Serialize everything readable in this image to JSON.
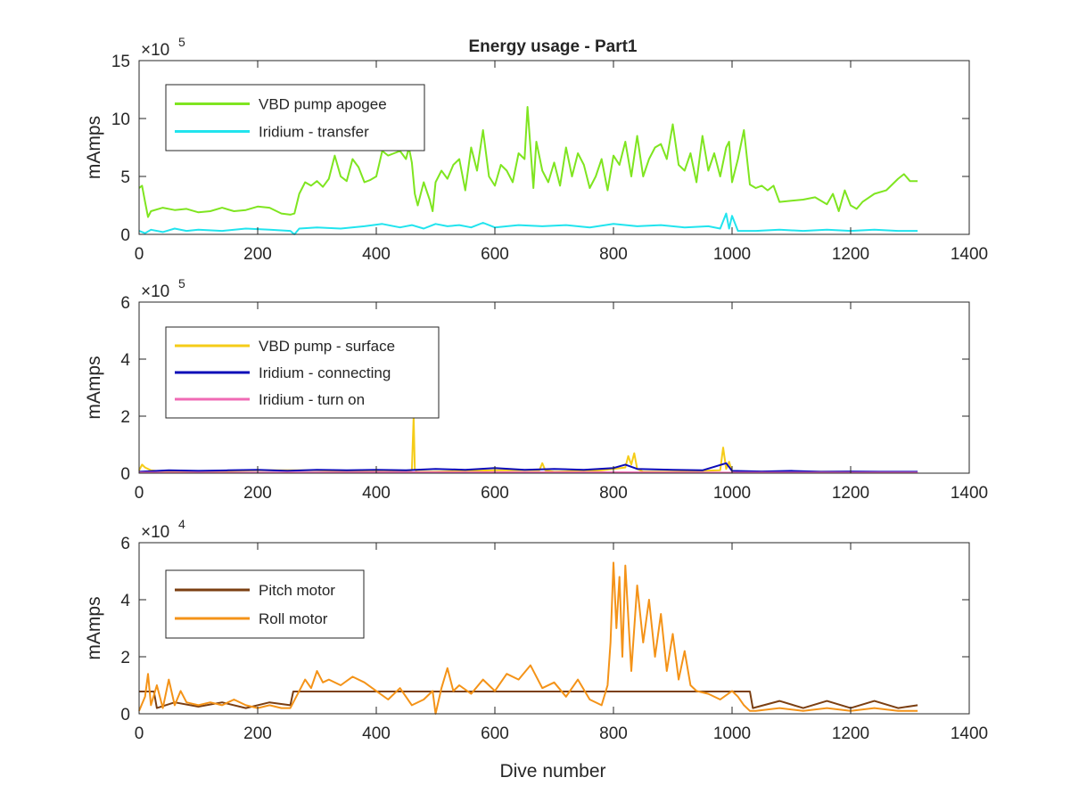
{
  "figure": {
    "title": "Energy usage - Part1",
    "xlabel": "Dive number"
  },
  "colors": {
    "vbd_apogee": "#7fe520",
    "iridium_transfer": "#21e4ee",
    "vbd_surface": "#f5cc18",
    "iridium_connecting": "#0b0bb8",
    "iridium_turn_on": "#f06ab4",
    "pitch_motor": "#7b3f12",
    "roll_motor": "#f49318"
  },
  "chart_data": [
    {
      "type": "line",
      "title": "Energy usage - Part1",
      "xlabel": "",
      "ylabel": "mAmps",
      "exponent_label": "×10",
      "exponent_power": "5",
      "xlim": [
        0,
        1400
      ],
      "ylim": [
        0,
        15
      ],
      "scale_factor": 100000,
      "xticks": [
        "0",
        "200",
        "400",
        "600",
        "800",
        "1000",
        "1200",
        "1400"
      ],
      "yticks": [
        "0",
        "5",
        "10",
        "15"
      ],
      "legend_position": "top-left",
      "series": [
        {
          "name": "VBD pump apogee",
          "color": "#7fe520",
          "x": [
            0,
            5,
            10,
            15,
            20,
            40,
            60,
            80,
            100,
            120,
            140,
            160,
            180,
            200,
            220,
            240,
            255,
            262,
            270,
            280,
            290,
            300,
            310,
            320,
            330,
            340,
            350,
            360,
            370,
            380,
            390,
            400,
            410,
            420,
            430,
            440,
            450,
            455,
            460,
            465,
            470,
            480,
            490,
            495,
            500,
            510,
            520,
            530,
            540,
            550,
            560,
            570,
            580,
            590,
            600,
            610,
            620,
            630,
            640,
            650,
            655,
            660,
            665,
            670,
            680,
            690,
            700,
            710,
            720,
            730,
            740,
            750,
            760,
            770,
            780,
            790,
            800,
            810,
            820,
            830,
            840,
            850,
            860,
            870,
            880,
            890,
            900,
            910,
            920,
            930,
            940,
            950,
            960,
            970,
            980,
            990,
            995,
            1000,
            1010,
            1020,
            1030,
            1040,
            1050,
            1060,
            1070,
            1080,
            1100,
            1120,
            1140,
            1160,
            1170,
            1180,
            1190,
            1200,
            1210,
            1220,
            1240,
            1260,
            1280,
            1290,
            1300,
            1313
          ],
          "y": [
            4.0,
            4.2,
            2.8,
            1.5,
            2.0,
            2.3,
            2.1,
            2.2,
            1.9,
            2.0,
            2.3,
            2.0,
            2.1,
            2.4,
            2.3,
            1.8,
            1.7,
            1.8,
            3.5,
            4.5,
            4.2,
            4.6,
            4.1,
            4.8,
            6.8,
            5.0,
            4.6,
            6.5,
            5.8,
            4.5,
            4.7,
            5.0,
            7.2,
            6.8,
            7.0,
            7.2,
            6.5,
            7.5,
            6.2,
            3.5,
            2.5,
            4.5,
            3.0,
            2.0,
            4.5,
            5.5,
            4.8,
            6.0,
            6.5,
            3.8,
            7.5,
            5.5,
            9.0,
            5.0,
            4.2,
            6.0,
            5.5,
            4.5,
            7.0,
            6.5,
            11.0,
            7.5,
            4.0,
            8.0,
            5.5,
            4.5,
            6.2,
            4.2,
            7.5,
            5.0,
            7.0,
            6.0,
            4.0,
            5.0,
            6.5,
            3.8,
            6.8,
            6.0,
            8.0,
            5.0,
            8.5,
            5.0,
            6.5,
            7.5,
            7.8,
            6.5,
            9.5,
            6.0,
            5.5,
            7.0,
            4.5,
            8.5,
            5.5,
            7.0,
            5.0,
            7.5,
            8.0,
            4.5,
            6.5,
            9.0,
            4.3,
            4.0,
            4.2,
            3.8,
            4.2,
            2.8,
            2.9,
            3.0,
            3.2,
            2.6,
            3.5,
            2.0,
            3.8,
            2.5,
            2.2,
            2.8,
            3.5,
            3.8,
            4.8,
            5.2,
            4.6,
            4.6
          ]
        },
        {
          "name": "Iridium - transfer",
          "color": "#21e4ee",
          "x": [
            0,
            10,
            20,
            40,
            60,
            80,
            100,
            140,
            180,
            220,
            255,
            262,
            270,
            300,
            340,
            380,
            410,
            440,
            460,
            480,
            500,
            520,
            540,
            560,
            580,
            600,
            640,
            680,
            720,
            760,
            800,
            840,
            880,
            920,
            960,
            980,
            990,
            995,
            1000,
            1010,
            1040,
            1080,
            1120,
            1160,
            1200,
            1240,
            1280,
            1313
          ],
          "y": [
            0.3,
            0.1,
            0.4,
            0.2,
            0.5,
            0.3,
            0.4,
            0.3,
            0.5,
            0.4,
            0.3,
            0.0,
            0.5,
            0.6,
            0.5,
            0.7,
            0.9,
            0.6,
            0.8,
            0.5,
            0.9,
            0.7,
            0.8,
            0.6,
            1.0,
            0.6,
            0.8,
            0.7,
            0.8,
            0.6,
            0.9,
            0.7,
            0.8,
            0.6,
            0.7,
            0.5,
            1.8,
            0.5,
            1.6,
            0.3,
            0.3,
            0.4,
            0.3,
            0.4,
            0.3,
            0.4,
            0.3,
            0.3
          ]
        }
      ]
    },
    {
      "type": "line",
      "title": "",
      "xlabel": "",
      "ylabel": "mAmps",
      "exponent_label": "×10",
      "exponent_power": "5",
      "xlim": [
        0,
        1400
      ],
      "ylim": [
        0,
        6
      ],
      "scale_factor": 100000,
      "xticks": [
        "0",
        "200",
        "400",
        "600",
        "800",
        "1000",
        "1200",
        "1400"
      ],
      "yticks": [
        "0",
        "2",
        "4",
        "6"
      ],
      "legend_position": "top-left",
      "series": [
        {
          "name": "VBD pump - surface",
          "color": "#f5cc18",
          "x": [
            0,
            5,
            10,
            20,
            40,
            100,
            200,
            300,
            400,
            440,
            460,
            463,
            465,
            468,
            470,
            500,
            600,
            675,
            680,
            685,
            700,
            780,
            820,
            825,
            830,
            835,
            840,
            850,
            900,
            980,
            985,
            990,
            995,
            1000,
            1100,
            1200,
            1250,
            1313
          ],
          "y": [
            0.1,
            0.3,
            0.2,
            0.1,
            0.05,
            0.05,
            0.1,
            0.1,
            0.05,
            0.05,
            0.1,
            2.0,
            0.15,
            0.05,
            0.05,
            0.05,
            0.1,
            0.1,
            0.35,
            0.1,
            0.05,
            0.1,
            0.2,
            0.6,
            0.3,
            0.7,
            0.15,
            0.05,
            0.05,
            0.1,
            0.9,
            0.15,
            0.4,
            0.05,
            0.05,
            0.05,
            0.02,
            0.02
          ]
        },
        {
          "name": "Iridium - connecting",
          "color": "#0b0bb8",
          "x": [
            0,
            50,
            100,
            150,
            200,
            250,
            300,
            350,
            400,
            450,
            500,
            550,
            600,
            650,
            700,
            750,
            800,
            820,
            840,
            900,
            950,
            990,
            1000,
            1050,
            1100,
            1150,
            1200,
            1250,
            1313
          ],
          "y": [
            0.05,
            0.1,
            0.08,
            0.1,
            0.12,
            0.08,
            0.12,
            0.1,
            0.12,
            0.1,
            0.15,
            0.12,
            0.18,
            0.12,
            0.15,
            0.12,
            0.18,
            0.3,
            0.15,
            0.12,
            0.1,
            0.35,
            0.08,
            0.06,
            0.08,
            0.05,
            0.06,
            0.05,
            0.05
          ]
        },
        {
          "name": "Iridium - turn on",
          "color": "#f06ab4",
          "x": [
            0,
            200,
            400,
            600,
            800,
            1000,
            1200,
            1313
          ],
          "y": [
            0.02,
            0.02,
            0.03,
            0.03,
            0.03,
            0.02,
            0.02,
            0.02
          ]
        }
      ]
    },
    {
      "type": "line",
      "title": "",
      "xlabel": "Dive number",
      "ylabel": "mAmps",
      "exponent_label": "×10",
      "exponent_power": "4",
      "xlim": [
        0,
        1400
      ],
      "ylim": [
        0,
        6
      ],
      "scale_factor": 10000,
      "xticks": [
        "0",
        "200",
        "400",
        "600",
        "800",
        "1000",
        "1200",
        "1400"
      ],
      "yticks": [
        "0",
        "2",
        "4",
        "6"
      ],
      "legend_position": "top-left",
      "series": [
        {
          "name": "Pitch motor",
          "color": "#7b3f12",
          "x": [
            0,
            25,
            30,
            60,
            100,
            140,
            180,
            220,
            255,
            260,
            400,
            600,
            800,
            1000,
            1030,
            1035,
            1080,
            1120,
            1160,
            1200,
            1240,
            1280,
            1313
          ],
          "y": [
            0.78,
            0.78,
            0.2,
            0.4,
            0.25,
            0.4,
            0.2,
            0.4,
            0.3,
            0.78,
            0.78,
            0.78,
            0.78,
            0.78,
            0.78,
            0.2,
            0.45,
            0.2,
            0.45,
            0.2,
            0.45,
            0.2,
            0.3
          ]
        },
        {
          "name": "Roll motor",
          "color": "#f49318",
          "x": [
            0,
            10,
            15,
            20,
            30,
            40,
            50,
            60,
            70,
            80,
            100,
            120,
            140,
            160,
            180,
            200,
            220,
            240,
            255,
            270,
            280,
            290,
            300,
            310,
            320,
            340,
            360,
            380,
            400,
            420,
            440,
            460,
            480,
            495,
            500,
            510,
            520,
            530,
            540,
            560,
            580,
            600,
            620,
            640,
            660,
            680,
            700,
            720,
            740,
            760,
            780,
            790,
            795,
            800,
            805,
            810,
            815,
            820,
            830,
            840,
            850,
            860,
            870,
            880,
            890,
            900,
            910,
            920,
            930,
            940,
            960,
            980,
            1000,
            1010,
            1020,
            1030,
            1040,
            1080,
            1120,
            1160,
            1200,
            1240,
            1280,
            1313
          ],
          "y": [
            0.1,
            0.6,
            1.4,
            0.3,
            1.0,
            0.2,
            1.2,
            0.3,
            0.8,
            0.4,
            0.3,
            0.4,
            0.3,
            0.5,
            0.3,
            0.2,
            0.3,
            0.2,
            0.2,
            0.8,
            1.2,
            0.9,
            1.5,
            1.1,
            1.2,
            1.0,
            1.3,
            1.1,
            0.8,
            0.5,
            0.9,
            0.3,
            0.5,
            0.8,
            0.0,
            0.9,
            1.6,
            0.8,
            1.0,
            0.7,
            1.2,
            0.8,
            1.4,
            1.2,
            1.7,
            0.9,
            1.1,
            0.6,
            1.2,
            0.5,
            0.3,
            1.0,
            2.5,
            5.3,
            3.0,
            4.8,
            2.0,
            5.2,
            1.5,
            4.5,
            2.5,
            4.0,
            2.0,
            3.5,
            1.5,
            2.8,
            1.2,
            2.2,
            1.0,
            0.8,
            0.7,
            0.5,
            0.8,
            0.6,
            0.3,
            0.1,
            0.1,
            0.2,
            0.1,
            0.2,
            0.1,
            0.2,
            0.1,
            0.1
          ]
        }
      ]
    }
  ]
}
